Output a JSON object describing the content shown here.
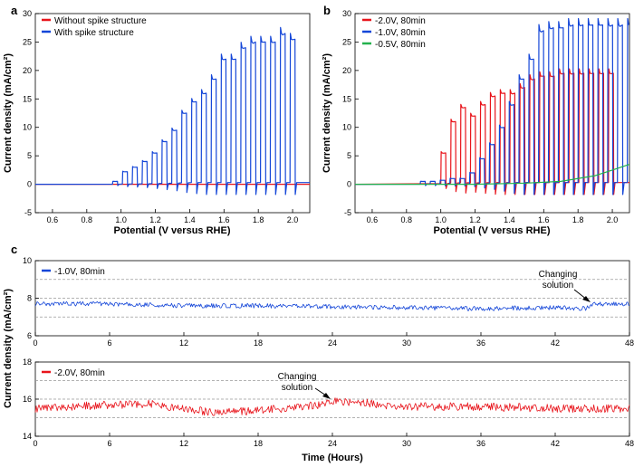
{
  "panels": {
    "a": {
      "letter": "a"
    },
    "b": {
      "letter": "b"
    },
    "c": {
      "letter": "c"
    }
  },
  "chart_data": [
    {
      "id": "a",
      "type": "line",
      "xlabel": "Potential (V versus RHE)",
      "ylabel": "Current density (mA/cm²)",
      "xlim": [
        0.5,
        2.1
      ],
      "ylim": [
        -5,
        30
      ],
      "xticks": [
        "0.6",
        "0.8",
        "1.0",
        "1.2",
        "1.4",
        "1.6",
        "1.8",
        "2.0"
      ],
      "yticks": [
        "-5",
        "0",
        "5",
        "10",
        "15",
        "20",
        "25",
        "30"
      ],
      "legend_position": "top-left",
      "series": [
        {
          "name": "Without spike structure",
          "color": "#e8141b",
          "style": "flat",
          "pulse_on": [
            0.0,
            0.0,
            0.0,
            0.0,
            0.0,
            0.0,
            0.0,
            0.0,
            0.0,
            0.0,
            0.0,
            0.0,
            0.0,
            0.0,
            0.0,
            0.0,
            0.0,
            0.0,
            0.0,
            0.0
          ]
        },
        {
          "name": "With spike structure",
          "color": "#1446d8",
          "style": "chopped",
          "pulse_start": 0.95,
          "pulse_step": 0.0575,
          "pulse_on": [
            0.5,
            2.2,
            3.0,
            4.0,
            5.5,
            7.5,
            9.5,
            12.5,
            14.5,
            16.0,
            18.5,
            22.0,
            22.0,
            24.0,
            25.0,
            25.0,
            25.0,
            26.5,
            25.5
          ]
        }
      ]
    },
    {
      "id": "b",
      "type": "line",
      "xlabel": "Potential (V versus RHE)",
      "ylabel": "Current density (mA/cm²)",
      "xlim": [
        0.5,
        2.1
      ],
      "ylim": [
        -5,
        30
      ],
      "xticks": [
        "0.6",
        "0.8",
        "1.0",
        "1.2",
        "1.4",
        "1.6",
        "1.8",
        "2.0"
      ],
      "yticks": [
        "-5",
        "0",
        "5",
        "10",
        "15",
        "20",
        "25",
        "30"
      ],
      "legend_position": "top-left",
      "series": [
        {
          "name": "-2.0V, 80min",
          "color": "#e8141b",
          "style": "chopped",
          "pulse_start": 1.0,
          "pulse_step": 0.0575,
          "pulse_on": [
            5.5,
            11.0,
            13.5,
            12.0,
            14.0,
            15.5,
            16.0,
            16.0,
            17.0,
            18.5,
            19.0,
            19.0,
            19.5,
            19.5,
            19.5,
            19.5,
            19.5,
            19.5
          ]
        },
        {
          "name": "-1.0V, 80min",
          "color": "#1446d8",
          "style": "chopped",
          "pulse_start": 0.88,
          "pulse_step": 0.0575,
          "pulse_on": [
            0.5,
            0.5,
            0.7,
            1.0,
            1.0,
            2.0,
            4.5,
            7.0,
            10.0,
            14.0,
            18.5,
            22.0,
            27.0,
            27.5,
            27.5,
            28.0,
            28.0,
            28.0,
            28.0,
            28.0,
            28.0,
            28.0
          ]
        },
        {
          "name": "-0.5V, 80min",
          "color": "#22b14c",
          "style": "ramp",
          "x": [
            0.5,
            1.2,
            1.5,
            1.7,
            1.9,
            2.0,
            2.1
          ],
          "values": [
            0.0,
            0.0,
            0.2,
            0.5,
            1.5,
            2.5,
            3.5
          ]
        }
      ]
    },
    {
      "id": "c-top",
      "type": "line",
      "ylabel": "Current density (mA/cm²)",
      "xlim": [
        0,
        48
      ],
      "ylim": [
        6,
        10
      ],
      "xticks": [
        "0",
        "6",
        "12",
        "18",
        "24",
        "30",
        "36",
        "42",
        "48"
      ],
      "yticks": [
        "6",
        "8",
        "10"
      ],
      "grid_y": [
        7,
        8,
        9
      ],
      "legend_position": "top-left",
      "annotation": {
        "line1": "Changing",
        "line2": "solution",
        "x_hours": 45.2
      },
      "series": [
        {
          "name": "-1.0V, 80min",
          "color": "#1446d8",
          "x": [
            0,
            6,
            12,
            18,
            24,
            30,
            36,
            42,
            44.5,
            45.2,
            48
          ],
          "values": [
            7.7,
            7.7,
            7.6,
            7.6,
            7.55,
            7.5,
            7.45,
            7.5,
            7.45,
            7.7,
            7.7
          ],
          "noise": 0.12
        }
      ]
    },
    {
      "id": "c-bottom",
      "type": "line",
      "xlabel": "Time (Hours)",
      "xlim": [
        0,
        48
      ],
      "ylim": [
        14,
        18
      ],
      "xticks": [
        "0",
        "6",
        "12",
        "18",
        "24",
        "30",
        "36",
        "42",
        "48"
      ],
      "yticks": [
        "14",
        "16",
        "18"
      ],
      "grid_y": [
        15,
        16,
        17
      ],
      "legend_position": "top-left",
      "annotation": {
        "line1": "Changing",
        "line2": "solution",
        "x_hours": 23.5
      },
      "series": [
        {
          "name": "-2.0V, 80min",
          "color": "#e8141b",
          "x": [
            0,
            3,
            6,
            9,
            12,
            14,
            16,
            18,
            20,
            23,
            24,
            26,
            28,
            30,
            36,
            42,
            48
          ],
          "values": [
            15.5,
            15.6,
            15.7,
            15.75,
            15.5,
            15.3,
            15.3,
            15.4,
            15.5,
            15.7,
            15.9,
            15.85,
            15.7,
            15.6,
            15.6,
            15.5,
            15.5
          ],
          "noise": 0.22
        }
      ]
    }
  ]
}
